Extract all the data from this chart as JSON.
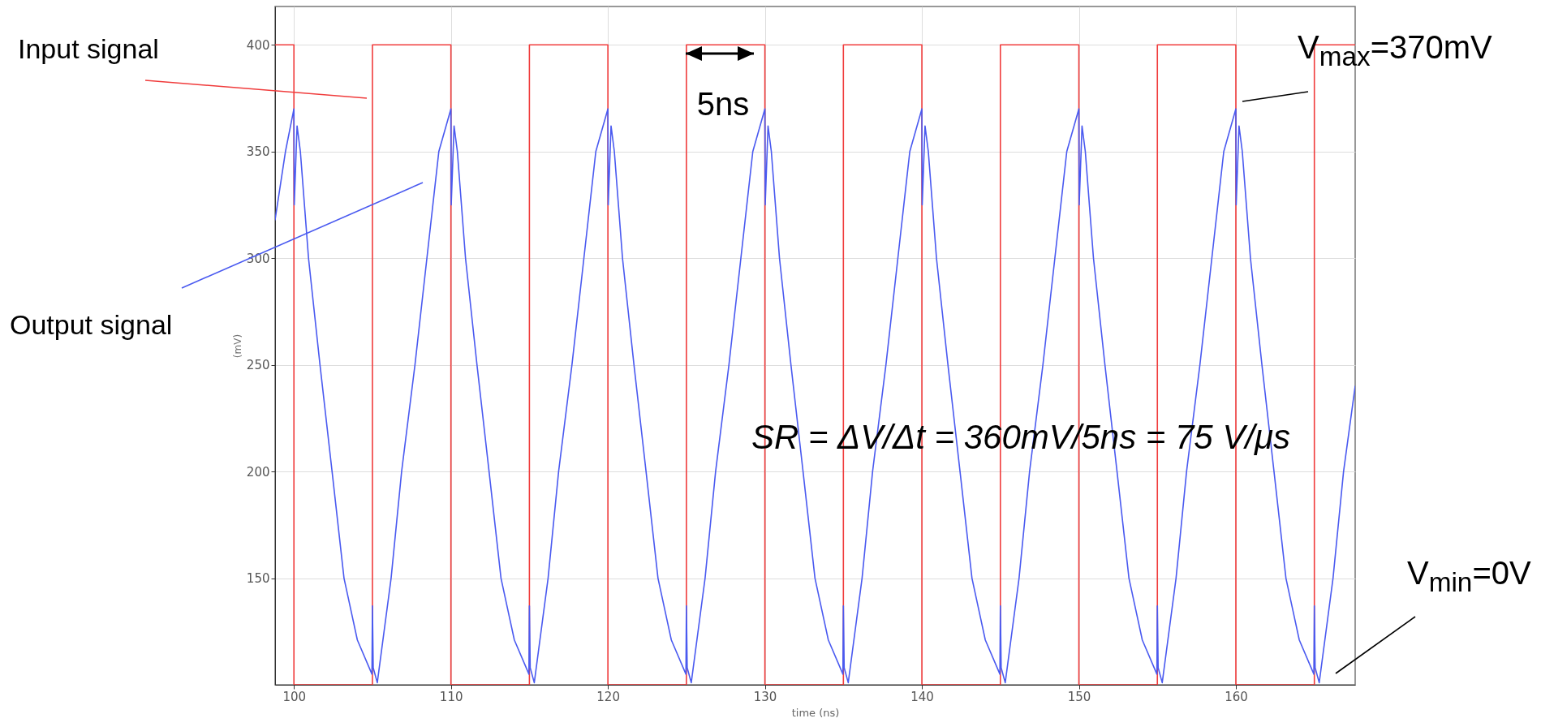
{
  "chart_data": {
    "type": "line",
    "xlabel": "time (ns)",
    "ylabel": "(mV)",
    "xlim": [
      98.8,
      167.6
    ],
    "ylim": [
      100,
      418
    ],
    "xticks": [
      100,
      110,
      120,
      130,
      140,
      150,
      160
    ],
    "yticks": [
      150,
      200,
      250,
      300,
      350,
      400
    ],
    "grid": true,
    "line_style": "solid",
    "series": [
      {
        "name": "Input signal",
        "color": "#f03c3c",
        "x": [
          98.8,
          100,
          100,
          105,
          105,
          110,
          110,
          115,
          115,
          120,
          120,
          125,
          125,
          130,
          130,
          135,
          135,
          140,
          140,
          145,
          145,
          150,
          150,
          155,
          155,
          160,
          160,
          165,
          165,
          167.6
        ],
        "values": [
          400,
          400,
          100,
          100,
          400,
          400,
          100,
          100,
          400,
          400,
          100,
          100,
          400,
          400,
          100,
          100,
          400,
          400,
          100,
          100,
          400,
          400,
          100,
          100,
          400,
          400,
          100,
          100,
          400,
          400
        ]
      },
      {
        "name": "Output signal",
        "color": "#4a5af0",
        "x": [
          98.8,
          99.46,
          100,
          100.02,
          100.2,
          100.41,
          100.93,
          101.66,
          102.43,
          103.19,
          104.04,
          104.97,
          105,
          105.05,
          105.31,
          106.19,
          106.86,
          107.71,
          108.47,
          109.23,
          110,
          110.02,
          110.2,
          110.41,
          110.93,
          111.66,
          112.43,
          113.19,
          114.04,
          114.97,
          115,
          115.05,
          115.31,
          116.19,
          116.86,
          117.71,
          118.47,
          119.23,
          120,
          120.02,
          120.2,
          120.41,
          120.93,
          121.66,
          122.43,
          123.19,
          124.04,
          124.97,
          125,
          125.05,
          125.31,
          126.19,
          126.86,
          127.71,
          128.47,
          129.23,
          130,
          130.02,
          130.2,
          130.41,
          130.93,
          131.66,
          132.43,
          133.19,
          134.04,
          134.97,
          135,
          135.05,
          135.31,
          136.19,
          136.86,
          137.71,
          138.47,
          139.23,
          140,
          140.02,
          140.2,
          140.41,
          140.93,
          141.66,
          142.43,
          143.19,
          144.04,
          144.97,
          145,
          145.05,
          145.31,
          146.19,
          146.86,
          147.71,
          148.47,
          149.23,
          150,
          150.02,
          150.2,
          150.41,
          150.93,
          151.66,
          152.43,
          153.19,
          154.04,
          154.97,
          155,
          155.05,
          155.31,
          156.19,
          156.86,
          157.71,
          158.47,
          159.23,
          160,
          160.02,
          160.2,
          160.41,
          160.93,
          161.66,
          162.43,
          163.19,
          164.04,
          164.97,
          165,
          165.05,
          165.31,
          166.19,
          166.86,
          167.6
        ],
        "values": [
          318,
          350,
          370,
          325,
          362,
          350,
          300,
          250,
          200,
          150,
          121,
          105,
          137,
          108,
          101,
          150,
          200,
          250,
          300,
          350,
          370,
          325,
          362,
          350,
          300,
          250,
          200,
          150,
          121,
          105,
          137,
          108,
          101,
          150,
          200,
          250,
          300,
          350,
          370,
          325,
          362,
          350,
          300,
          250,
          200,
          150,
          121,
          105,
          137,
          108,
          101,
          150,
          200,
          250,
          300,
          350,
          370,
          325,
          362,
          350,
          300,
          250,
          200,
          150,
          121,
          105,
          137,
          108,
          101,
          150,
          200,
          250,
          300,
          350,
          370,
          325,
          362,
          350,
          300,
          250,
          200,
          150,
          121,
          105,
          137,
          108,
          101,
          150,
          200,
          250,
          300,
          350,
          370,
          325,
          362,
          350,
          300,
          250,
          200,
          150,
          121,
          105,
          137,
          108,
          101,
          150,
          200,
          250,
          300,
          350,
          370,
          325,
          362,
          350,
          300,
          250,
          200,
          150,
          121,
          105,
          137,
          108,
          101,
          150,
          200,
          240
        ]
      }
    ],
    "annotations": [
      "5ns",
      "V$_{max}$=370mV",
      "V$_{min}$=0V",
      "SR = ΔV/Δt = 360mV/5ns = 75 V/μs"
    ]
  }
}
